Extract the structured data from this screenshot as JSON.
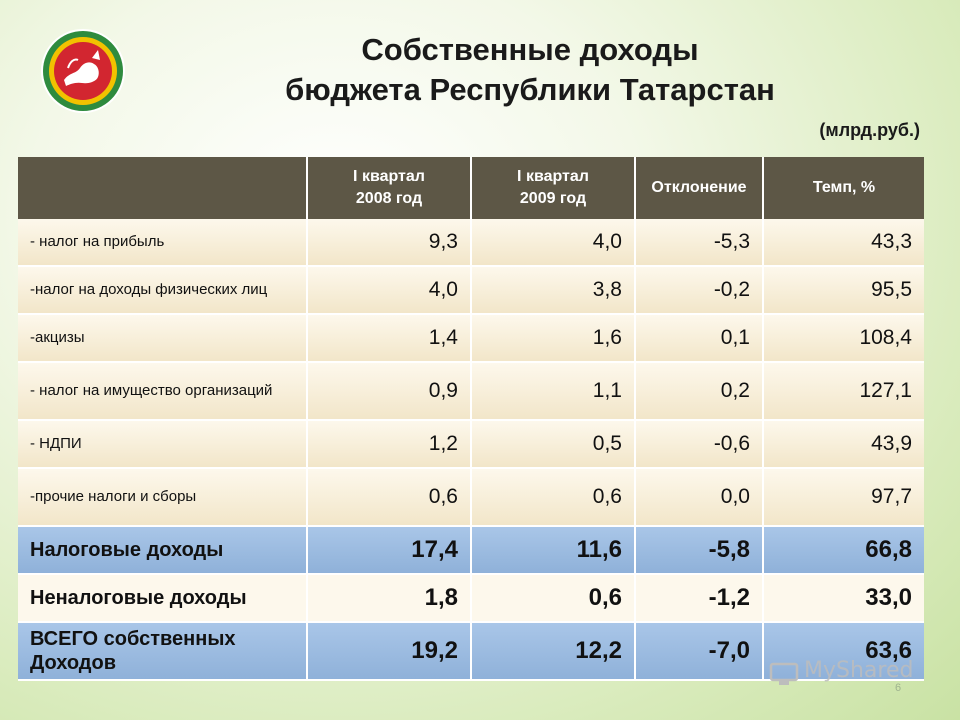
{
  "header": {
    "title_line1": "Собственные доходы",
    "title_line2": "бюджета Республики Татарстан",
    "units": "(млрд.руб.)"
  },
  "emblem": {
    "name": "tatarstan-emblem",
    "colors": [
      "#d22630",
      "#ffffff",
      "#2e8b3e",
      "#f2c200"
    ]
  },
  "table": {
    "headers": [
      "",
      "I квартал\n2008 год",
      "I квартал\n2009 год",
      "Отклонение",
      "Темп, %"
    ],
    "rows": [
      {
        "label": "- налог на прибыль",
        "v": [
          "9,3",
          "4,0",
          "-5,3",
          "43,3"
        ]
      },
      {
        "label": "-налог на доходы  физических лиц",
        "v": [
          "4,0",
          "3,8",
          "-0,2",
          "95,5"
        ]
      },
      {
        "label": "-акцизы",
        "v": [
          "1,4",
          "1,6",
          "0,1",
          "108,4"
        ]
      },
      {
        "label": "- налог на имущество организаций",
        "v": [
          "0,9",
          "1,1",
          "0,2",
          "127,1"
        ]
      },
      {
        "label": "- НДПИ",
        "v": [
          "1,2",
          "0,5",
          "-0,6",
          "43,9"
        ]
      },
      {
        "label": "-прочие налоги и сборы",
        "v": [
          "0,6",
          "0,6",
          "0,0",
          "97,7"
        ]
      },
      {
        "label": "Налоговые доходы",
        "v": [
          "17,4",
          "11,6",
          "-5,8",
          "66,8"
        ]
      },
      {
        "label": "Неналоговые доходы",
        "v": [
          "1,8",
          "0,6",
          "-1,2",
          "33,0"
        ]
      },
      {
        "label": "ВСЕГО собственных Доходов",
        "v": [
          "19,2",
          "12,2",
          "-7,0",
          "63,6"
        ]
      }
    ]
  },
  "watermark": "MyShared",
  "page_number": "6",
  "colors": {
    "header_bg": "#5d5746",
    "row_bg": "#f7efda",
    "summary_bg": "#9dbbe1"
  }
}
